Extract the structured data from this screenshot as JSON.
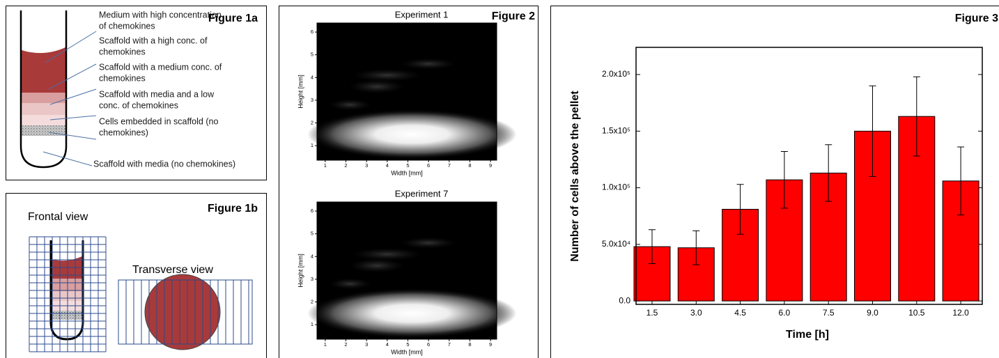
{
  "figure1a": {
    "label": "Figure 1a",
    "annotations": [
      [
        "Medium with high concentration",
        "of chemokines"
      ],
      [
        "Scaffold with a high conc. of",
        "chemokines"
      ],
      [
        "Scaffold with a medium conc. of",
        "chemokines"
      ],
      [
        "Scaffold with media and a low",
        "conc. of chemokines"
      ],
      [
        "Cells embedded in scaffold (no",
        "chemokines)"
      ],
      [
        "Scaffold with media (no chemokines)"
      ]
    ]
  },
  "figure1b": {
    "label": "Figure 1b",
    "views": [
      "Frontal view",
      "Transverse view"
    ]
  },
  "figure2": {
    "label": "Figure 2",
    "panels": [
      {
        "title": "Experiment 1",
        "xlabel": "Width [mm]",
        "ylabel": "Height [mm]",
        "xlim": [
          0.6,
          9.3
        ],
        "ylim": [
          0.36,
          6.4
        ],
        "xticks": [
          1,
          2,
          3,
          4,
          5,
          6,
          7,
          8,
          9
        ],
        "yticks": [
          1,
          2,
          3,
          4,
          5,
          6
        ]
      },
      {
        "title": "Experiment 7",
        "xlabel": "Width [mm]",
        "ylabel": "Height [mm]",
        "xlim": [
          0.6,
          9.3
        ],
        "ylim": [
          0.36,
          6.4
        ],
        "xticks": [
          1,
          2,
          3,
          4,
          5,
          6,
          7,
          8,
          9
        ],
        "yticks": [
          1,
          2,
          3,
          4,
          5,
          6
        ]
      }
    ]
  },
  "chart_data": {
    "type": "bar",
    "panel_label": "Figure 3",
    "xlabel": "Time [h]",
    "ylabel": "Number of cells above the pellet",
    "categories": [
      "1.5",
      "3.0",
      "4.5",
      "6.0",
      "7.5",
      "9.0",
      "10.5",
      "12.0"
    ],
    "series": [
      {
        "color": "#ff0000",
        "values": [
          48000,
          47000,
          81000,
          107000,
          113000,
          150000,
          163000,
          106000
        ],
        "errors": [
          15000,
          15000,
          22000,
          25000,
          25000,
          40000,
          35000,
          30000
        ]
      }
    ],
    "ylim": [
      -3000,
      224000
    ],
    "yticks": [
      {
        "value": 0,
        "label": "0.0"
      },
      {
        "value": 50000,
        "label": "5.0x10⁴"
      },
      {
        "value": 100000,
        "label": "1.0x10⁵"
      },
      {
        "value": 150000,
        "label": "1.5x10⁵"
      },
      {
        "value": 200000,
        "label": "2.0x10⁵"
      }
    ]
  }
}
